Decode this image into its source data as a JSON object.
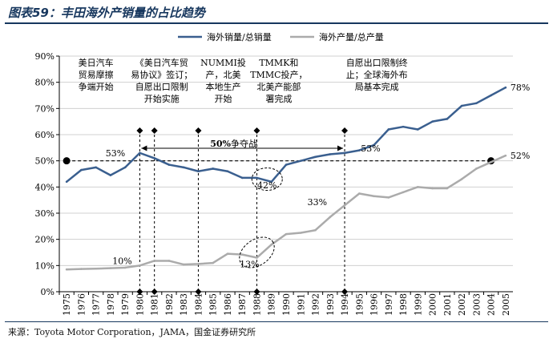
{
  "page": {
    "title": "图表59：丰田海外产销量的占比趋势",
    "source": "来源：Toyota Motor Corporation，JAMA，国金证券研究所"
  },
  "chart_data": {
    "type": "line",
    "x": [
      1975,
      1976,
      1977,
      1978,
      1979,
      1980,
      1981,
      1982,
      1983,
      1984,
      1985,
      1986,
      1987,
      1988,
      1989,
      1990,
      1991,
      1992,
      1993,
      1994,
      1995,
      1996,
      1997,
      1998,
      1999,
      2000,
      2001,
      2002,
      2003,
      2004,
      2005
    ],
    "xlabels": [
      "1975",
      "1976",
      "1977",
      "1978",
      "1979",
      "1980",
      "1981",
      "1982",
      "1983",
      "1984",
      "1985",
      "1986",
      "1987",
      "1988",
      "1989",
      "1990",
      "1991",
      "1992",
      "1993",
      "1994",
      "1995",
      "1996",
      "1997",
      "1998",
      "1999",
      "2000",
      "2001",
      "2002",
      "2003",
      "2004",
      "2005"
    ],
    "ylim": [
      0,
      90
    ],
    "yticks": [
      0,
      10,
      20,
      30,
      40,
      50,
      60,
      70,
      80,
      90
    ],
    "ytick_labels": [
      "0%",
      "10%",
      "20%",
      "30%",
      "40%",
      "50%",
      "60%",
      "70%",
      "80%",
      "90%"
    ],
    "series": [
      {
        "name": "海外销量/总销量",
        "color": "#3a5f8f",
        "values": [
          42,
          46.5,
          47.5,
          44.5,
          47.5,
          53,
          51,
          48.5,
          47.5,
          46,
          47,
          46,
          43.5,
          43.5,
          42,
          48.5,
          50,
          51.5,
          52.5,
          53,
          54,
          56,
          62,
          63,
          62,
          65,
          66,
          71,
          72,
          75,
          78
        ]
      },
      {
        "name": "海外产量/总产量",
        "color": "#ababab",
        "values": [
          8.5,
          8.7,
          8.8,
          9,
          9.2,
          10,
          11.8,
          11.8,
          10.4,
          10.6,
          11,
          14.5,
          14.2,
          13,
          18,
          22,
          22.5,
          23.5,
          28.5,
          33,
          37.5,
          36.5,
          36,
          38,
          40,
          39.5,
          39.5,
          43,
          47,
          49.5,
          52
        ]
      }
    ],
    "reference_line": {
      "value": 50,
      "style": "dashed"
    },
    "reference_points": [
      {
        "x": 1975,
        "y": 50
      },
      {
        "x": 2004,
        "y": 50
      }
    ],
    "event_years": [
      1980,
      1981,
      1984,
      1988,
      1994
    ],
    "annotations": [
      {
        "x": 1977,
        "lines": [
          "美日汽车",
          "贸易摩擦",
          "争端开始"
        ]
      },
      {
        "x": 1981.5,
        "lines": [
          "《美日汽车贸",
          "易协议》签订；",
          "自愿出口限制",
          "开始实施"
        ]
      },
      {
        "x": 1985.7,
        "lines": [
          "NUMMI投",
          "产，北美",
          "本地生产",
          "开始"
        ]
      },
      {
        "x": 1989.5,
        "lines": [
          "TMMK和",
          "TMMC投产，",
          "北美产能部",
          "署完成"
        ]
      },
      {
        "x": 1996.2,
        "lines": [
          "自愿出口限制终",
          "止；全球海外布",
          "局基本完成"
        ]
      }
    ],
    "value_labels": [
      {
        "x": 1979,
        "y": 53,
        "text": "53%"
      },
      {
        "x": 1995,
        "y": 53,
        "text": "53%"
      },
      {
        "x": 2005,
        "y": 78,
        "text": "78%"
      },
      {
        "x": 2005,
        "y": 52,
        "text": "52%"
      },
      {
        "x": 1978.8,
        "y": 10,
        "text": "10%"
      },
      {
        "x": 1987.5,
        "y": 13,
        "text": "13%"
      },
      {
        "x": 1988.7,
        "y": 42,
        "text": "42%"
      },
      {
        "x": 1992.8,
        "y": 33,
        "text": "33%"
      }
    ],
    "war_label": {
      "x1": 1980,
      "x2": 1994,
      "y": 52,
      "text_bold": "50%",
      "text_rest": "争夺战"
    },
    "legend_position": "top"
  }
}
